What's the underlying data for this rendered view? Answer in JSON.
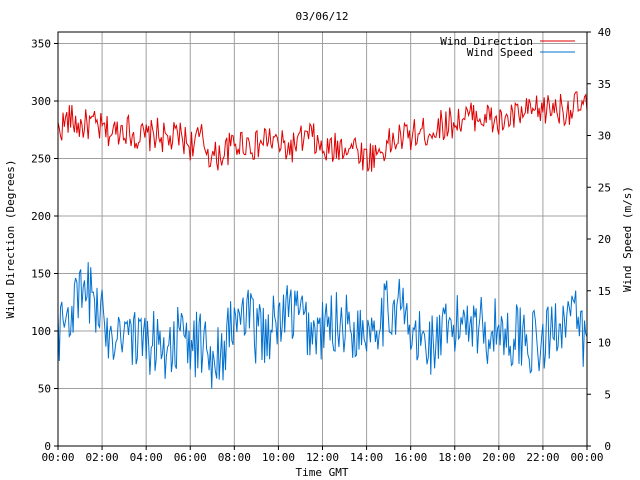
{
  "chart_data": {
    "type": "line",
    "title": "03/06/12",
    "xlabel": "Time GMT",
    "ylabel_left": "Wind Direction (Degrees)",
    "ylabel_right": "Wind Speed (m/s)",
    "x_range_hours": [
      0,
      24
    ],
    "x_tick_labels": [
      "00:00",
      "02:00",
      "04:00",
      "06:00",
      "08:00",
      "10:00",
      "12:00",
      "14:00",
      "16:00",
      "18:00",
      "20:00",
      "22:00",
      "00:00"
    ],
    "ylim_left": [
      0,
      360
    ],
    "yticks_left": [
      "0",
      "50",
      "100",
      "150",
      "200",
      "250",
      "300",
      "350"
    ],
    "ylim_right": [
      0,
      40
    ],
    "yticks_right": [
      "0",
      "5",
      "10",
      "15",
      "20",
      "25",
      "30",
      "35",
      "40"
    ],
    "grid": true,
    "legend_position": "top-right",
    "series": [
      {
        "name": "Wind Direction",
        "axis": "left",
        "color": "#e00000",
        "x": [
          0,
          0.5,
          1,
          1.5,
          2,
          2.5,
          3,
          3.5,
          4,
          4.5,
          5,
          5.5,
          6,
          6.5,
          7,
          7.5,
          8,
          8.5,
          9,
          9.5,
          10,
          10.5,
          11,
          11.5,
          12,
          12.5,
          13,
          13.5,
          14,
          14.5,
          15,
          15.5,
          16,
          16.5,
          17,
          17.5,
          18,
          18.5,
          19,
          19.5,
          20,
          20.5,
          21,
          21.5,
          22,
          22.5,
          23,
          23.5,
          24
        ],
        "values": [
          275,
          285,
          278,
          280,
          275,
          272,
          278,
          270,
          268,
          272,
          265,
          270,
          262,
          268,
          250,
          255,
          262,
          265,
          260,
          268,
          262,
          258,
          265,
          270,
          255,
          258,
          262,
          260,
          250,
          255,
          262,
          268,
          270,
          272,
          275,
          280,
          282,
          285,
          288,
          285,
          280,
          285,
          288,
          290,
          292,
          295,
          292,
          295,
          295
        ]
      },
      {
        "name": "Wind Speed",
        "axis": "right",
        "color": "#0070d0",
        "x": [
          0,
          0.5,
          1,
          1.5,
          2,
          2.5,
          3,
          3.5,
          4,
          4.5,
          5,
          5.5,
          6,
          6.5,
          7,
          7.5,
          8,
          8.5,
          9,
          9.5,
          10,
          10.5,
          11,
          11.5,
          12,
          12.5,
          13,
          13.5,
          14,
          14.5,
          15,
          15.5,
          16,
          16.5,
          17,
          17.5,
          18,
          18.5,
          19,
          19.5,
          20,
          20.5,
          21,
          21.5,
          22,
          22.5,
          23,
          23.5,
          24
        ],
        "values": [
          11,
          13,
          14,
          15,
          12,
          11,
          12,
          10,
          10,
          10,
          9.5,
          10.5,
          9.5,
          10,
          8.5,
          9.5,
          12,
          12.5,
          11,
          11,
          12,
          13,
          12.5,
          11,
          11,
          12,
          12,
          11,
          11.5,
          12.5,
          13,
          14,
          10.5,
          10,
          10,
          10.5,
          11,
          13,
          12,
          11,
          11.5,
          10.5,
          11,
          10,
          9.5,
          11.5,
          13,
          12,
          9.5
        ]
      }
    ]
  }
}
